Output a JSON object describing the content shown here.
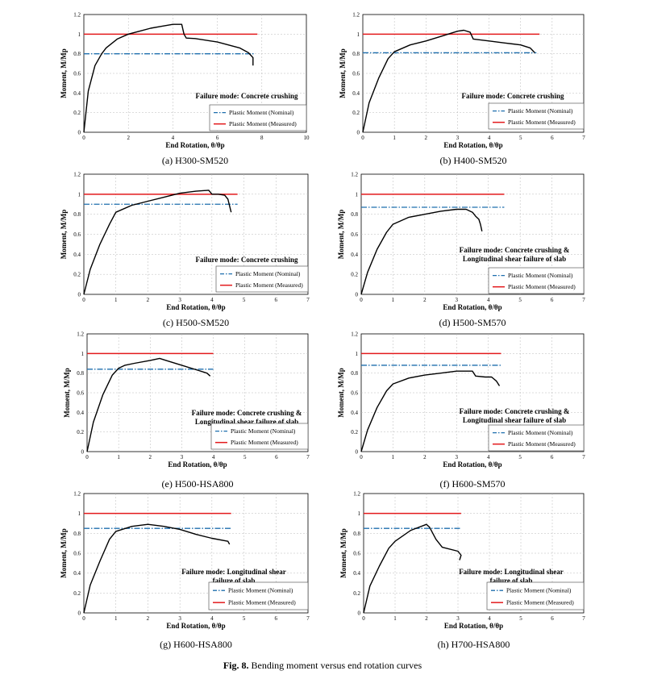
{
  "figure_caption": {
    "label": "Fig. 8.",
    "text": " Bending moment versus end rotation curves"
  },
  "colors": {
    "nominal": "#1f6fae",
    "measured": "#e31a1c",
    "curve": "#000000",
    "grid": "#b8b8b8"
  },
  "chart_data": [
    {
      "type": "line",
      "caption": "(a)  H300-SM520",
      "xlabel": "End Rotation, θ/θp",
      "ylabel": "Moment, M/Mp",
      "xlim": [
        0,
        10
      ],
      "ylim": [
        0,
        1.2
      ],
      "xticks": [
        "0",
        "2",
        "4",
        "6",
        "8",
        "10"
      ],
      "yticks": [
        "0",
        "0.2",
        "0.4",
        "0.6",
        "0.8",
        "1",
        "1.2"
      ],
      "grid": true,
      "annotation": [
        "Failure mode: Concrete crushing"
      ],
      "legend": [
        "Plastic Moment (Nominal)",
        "Plastic Moment (Measured)"
      ],
      "nominal": {
        "y": 0.8,
        "x": [
          0,
          7.7
        ]
      },
      "measured": {
        "y": 1.0,
        "x": [
          0,
          7.8
        ]
      },
      "series": [
        {
          "x": [
            0,
            0.2,
            0.5,
            0.8,
            1.0,
            1.5,
            2.0,
            2.5,
            3.0,
            3.5,
            4.0,
            4.4,
            4.5,
            4.6,
            5.0,
            6.0,
            7.0,
            7.4,
            7.6,
            7.6
          ],
          "y": [
            0,
            0.42,
            0.68,
            0.8,
            0.86,
            0.95,
            1.0,
            1.03,
            1.06,
            1.08,
            1.1,
            1.1,
            1.0,
            0.96,
            0.955,
            0.92,
            0.86,
            0.81,
            0.76,
            0.68
          ]
        }
      ]
    },
    {
      "type": "line",
      "caption": "(b)  H400-SM520",
      "xlabel": "End Rotation, θ/θp",
      "ylabel": "Moment, M/Mp",
      "xlim": [
        0,
        7
      ],
      "ylim": [
        0,
        1.2
      ],
      "xticks": [
        "0",
        "1",
        "2",
        "3",
        "4",
        "5",
        "6",
        "7"
      ],
      "yticks": [
        "0",
        "0.2",
        "0.4",
        "0.6",
        "0.8",
        "1",
        "1.2"
      ],
      "grid": true,
      "annotation": [
        "Failure mode: Concrete crushing"
      ],
      "legend": [
        "Plastic Moment (Nominal)",
        "Plastic Moment (Measured)"
      ],
      "nominal": {
        "y": 0.81,
        "x": [
          0,
          5.5
        ]
      },
      "measured": {
        "y": 1.0,
        "x": [
          0,
          5.6
        ]
      },
      "series": [
        {
          "x": [
            0,
            0.2,
            0.5,
            0.8,
            1.0,
            1.5,
            2.0,
            2.5,
            3.0,
            3.2,
            3.4,
            3.5,
            4.0,
            4.5,
            5.0,
            5.3,
            5.45
          ],
          "y": [
            0,
            0.3,
            0.55,
            0.75,
            0.82,
            0.89,
            0.93,
            0.98,
            1.03,
            1.04,
            1.02,
            0.95,
            0.93,
            0.91,
            0.89,
            0.86,
            0.81
          ]
        }
      ]
    },
    {
      "type": "line",
      "caption": "(c)  H500-SM520",
      "xlabel": "End Rotation, θ/θp",
      "ylabel": "Moment, M/Mp",
      "xlim": [
        0,
        7
      ],
      "ylim": [
        0,
        1.2
      ],
      "xticks": [
        "0",
        "1",
        "2",
        "3",
        "4",
        "5",
        "6",
        "7"
      ],
      "yticks": [
        "0",
        "0.2",
        "0.4",
        "0.6",
        "0.8",
        "1",
        "1.2"
      ],
      "grid": true,
      "annotation": [
        "Failure mode: Concrete crushing"
      ],
      "legend": [
        "Plastic Moment (Nominal)",
        "Plastic Moment (Measured)"
      ],
      "nominal": {
        "y": 0.9,
        "x": [
          0,
          4.8
        ]
      },
      "measured": {
        "y": 1.0,
        "x": [
          0,
          4.8
        ]
      },
      "series": [
        {
          "x": [
            0,
            0.2,
            0.5,
            0.8,
            1.0,
            1.5,
            2.0,
            2.5,
            3.0,
            3.5,
            3.9,
            4.0,
            4.2,
            4.4,
            4.5,
            4.6
          ],
          "y": [
            0,
            0.25,
            0.5,
            0.7,
            0.82,
            0.89,
            0.93,
            0.97,
            1.01,
            1.03,
            1.04,
            1.0,
            1.0,
            0.99,
            0.95,
            0.82
          ]
        }
      ]
    },
    {
      "type": "line",
      "caption": "(d)  H500-SM570",
      "xlabel": "End Rotation, θ/θp",
      "ylabel": "Moment, M/Mp",
      "xlim": [
        0,
        7
      ],
      "ylim": [
        0,
        1.2
      ],
      "xticks": [
        "0",
        "1",
        "2",
        "3",
        "4",
        "5",
        "6",
        "7"
      ],
      "yticks": [
        "0",
        "0.2",
        "0.4",
        "0.6",
        "0.8",
        "1",
        "1.2"
      ],
      "grid": true,
      "annotation": [
        "Failure mode: Concrete crushing &",
        "Longitudinal shear failure of slab"
      ],
      "legend": [
        "Plastic Moment (Nominal)",
        "Plastic Moment (Measured)"
      ],
      "nominal": {
        "y": 0.87,
        "x": [
          0,
          4.5
        ]
      },
      "measured": {
        "y": 1.0,
        "x": [
          0,
          4.5
        ]
      },
      "series": [
        {
          "x": [
            0,
            0.2,
            0.5,
            0.8,
            1.0,
            1.5,
            2.0,
            2.5,
            3.0,
            3.3,
            3.5,
            3.6,
            3.7,
            3.75,
            3.8
          ],
          "y": [
            0,
            0.22,
            0.45,
            0.62,
            0.7,
            0.77,
            0.8,
            0.83,
            0.85,
            0.85,
            0.82,
            0.78,
            0.75,
            0.7,
            0.63
          ]
        }
      ]
    },
    {
      "type": "line",
      "caption": "(e)  H500-HSA800",
      "xlabel": "End Rotation, θ/θp",
      "ylabel": "Moment, M/Mp",
      "xlim": [
        0,
        7
      ],
      "ylim": [
        0,
        1.2
      ],
      "xticks": [
        "0",
        "1",
        "2",
        "3",
        "4",
        "5",
        "6",
        "7"
      ],
      "yticks": [
        "0",
        "0.2",
        "0.4",
        "0.6",
        "0.8",
        "1",
        "1.2"
      ],
      "grid": true,
      "annotation": [
        "Failure mode: Concrete crushing &",
        "Longitudinal shear failure of slab"
      ],
      "legend": [
        "Plastic Moment (Nominal)",
        "Plastic Moment (Measured)"
      ],
      "nominal": {
        "y": 0.84,
        "x": [
          0,
          4.0
        ]
      },
      "measured": {
        "y": 1.0,
        "x": [
          0,
          4.0
        ]
      },
      "series": [
        {
          "x": [
            0,
            0.2,
            0.5,
            0.8,
            1.0,
            1.2,
            1.5,
            2.0,
            2.3,
            2.5,
            3.0,
            3.5,
            3.8,
            3.9
          ],
          "y": [
            0,
            0.3,
            0.58,
            0.78,
            0.85,
            0.88,
            0.9,
            0.93,
            0.95,
            0.93,
            0.88,
            0.83,
            0.8,
            0.77
          ]
        }
      ]
    },
    {
      "type": "line",
      "caption": "(f)  H600-SM570",
      "xlabel": "End Rotation, θ/θp",
      "ylabel": "Moment, M/Mp",
      "xlim": [
        0,
        7
      ],
      "ylim": [
        0,
        1.2
      ],
      "xticks": [
        "0",
        "1",
        "2",
        "3",
        "4",
        "5",
        "6",
        "7"
      ],
      "yticks": [
        "0",
        "0.2",
        "0.4",
        "0.6",
        "0.8",
        "1",
        "1.2"
      ],
      "grid": true,
      "annotation": [
        "Failure mode: Concrete crushing &",
        "Longitudinal shear failure of slab"
      ],
      "legend": [
        "Plastic Moment (Nominal)",
        "Plastic Moment (Measured)"
      ],
      "nominal": {
        "y": 0.88,
        "x": [
          0,
          4.4
        ]
      },
      "measured": {
        "y": 1.0,
        "x": [
          0,
          4.4
        ]
      },
      "series": [
        {
          "x": [
            0,
            0.2,
            0.5,
            0.8,
            1.0,
            1.5,
            2.0,
            2.5,
            3.0,
            3.5,
            3.6,
            3.9,
            4.1,
            4.25,
            4.35
          ],
          "y": [
            0,
            0.22,
            0.45,
            0.62,
            0.69,
            0.75,
            0.78,
            0.8,
            0.82,
            0.82,
            0.77,
            0.76,
            0.76,
            0.72,
            0.67
          ]
        }
      ]
    },
    {
      "type": "line",
      "caption": "(g)  H600-HSA800",
      "xlabel": "End Rotation, θ/θp",
      "ylabel": "Moment, M/Mp",
      "xlim": [
        0,
        7
      ],
      "ylim": [
        0,
        1.2
      ],
      "xticks": [
        "0",
        "1",
        "2",
        "3",
        "4",
        "5",
        "6",
        "7"
      ],
      "yticks": [
        "0",
        "0.2",
        "0.4",
        "0.6",
        "0.8",
        "1",
        "1.2"
      ],
      "grid": true,
      "annotation": [
        "Failure mode: Longitudinal shear",
        "failure of slab"
      ],
      "legend": [
        "Plastic Moment (Nominal)",
        "Plastic Moment (Measured)"
      ],
      "nominal": {
        "y": 0.85,
        "x": [
          0,
          4.6
        ]
      },
      "measured": {
        "y": 1.0,
        "x": [
          0,
          4.6
        ]
      },
      "series": [
        {
          "x": [
            0,
            0.2,
            0.5,
            0.8,
            1.0,
            1.5,
            2.0,
            2.5,
            3.0,
            3.5,
            4.0,
            4.5,
            4.55
          ],
          "y": [
            0,
            0.28,
            0.52,
            0.74,
            0.82,
            0.87,
            0.89,
            0.87,
            0.84,
            0.79,
            0.75,
            0.72,
            0.69
          ]
        }
      ]
    },
    {
      "type": "line",
      "caption": "(h)  H700-HSA800",
      "xlabel": "End Rotation, θ/θp",
      "ylabel": "Moment, M/Mp",
      "xlim": [
        0,
        7
      ],
      "ylim": [
        0,
        1.2
      ],
      "xticks": [
        "0",
        "1",
        "2",
        "3",
        "4",
        "5",
        "6",
        "7"
      ],
      "yticks": [
        "0",
        "0.2",
        "0.4",
        "0.6",
        "0.8",
        "1",
        "1.2"
      ],
      "grid": true,
      "annotation": [
        "Failure mode: Longitudinal shear",
        "failure of slab"
      ],
      "legend": [
        "Plastic Moment (Nominal)",
        "Plastic Moment (Measured)"
      ],
      "nominal": {
        "y": 0.85,
        "x": [
          0,
          3.1
        ]
      },
      "measured": {
        "y": 1.0,
        "x": [
          0,
          3.1
        ]
      },
      "series": [
        {
          "x": [
            0,
            0.2,
            0.5,
            0.8,
            1.0,
            1.5,
            2.0,
            2.1,
            2.3,
            2.5,
            3.0,
            3.1,
            3.05
          ],
          "y": [
            0,
            0.27,
            0.47,
            0.65,
            0.72,
            0.83,
            0.89,
            0.86,
            0.74,
            0.66,
            0.62,
            0.58,
            0.53
          ]
        }
      ]
    }
  ]
}
